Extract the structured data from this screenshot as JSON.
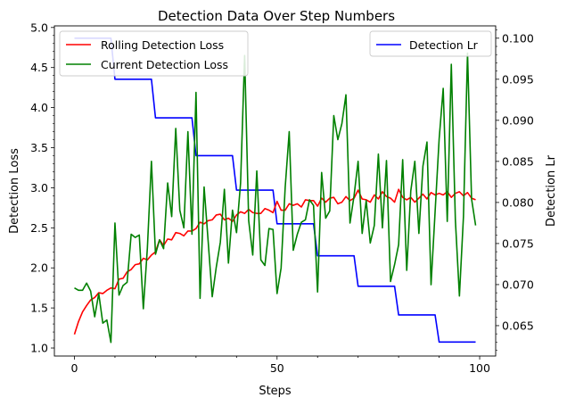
{
  "chart_data": {
    "type": "line",
    "title": "Detection Data Over Step Numbers",
    "xlabel": "Steps",
    "ylabel_left": "Detection Loss",
    "ylabel_right": "Detection Lr",
    "xlim": [
      -4.95,
      103.95
    ],
    "ylim_left": [
      0.9,
      5.02
    ],
    "ylim_right": [
      0.0613,
      0.1015
    ],
    "x_ticks": [
      0,
      50,
      100
    ],
    "y_ticks_left": [
      "1.0",
      "1.5",
      "2.0",
      "2.5",
      "3.0",
      "3.5",
      "4.0",
      "4.5",
      "5.0"
    ],
    "y_ticks_right": [
      "0.065",
      "0.070",
      "0.075",
      "0.080",
      "0.085",
      "0.090",
      "0.095",
      "0.100"
    ],
    "grid": false,
    "legend_left_position": "upper-left",
    "legend_right_position": "upper-right",
    "series_left": [
      {
        "name": "Rolling Detection Loss",
        "color": "#ff0000",
        "values": [
          1.17,
          1.33,
          1.45,
          1.53,
          1.6,
          1.63,
          1.69,
          1.68,
          1.72,
          1.75,
          1.74,
          1.86,
          1.87,
          1.95,
          1.98,
          2.04,
          2.05,
          2.12,
          2.1,
          2.16,
          2.2,
          2.35,
          2.28,
          2.36,
          2.35,
          2.44,
          2.43,
          2.4,
          2.46,
          2.46,
          2.49,
          2.57,
          2.55,
          2.59,
          2.6,
          2.66,
          2.67,
          2.6,
          2.62,
          2.58,
          2.66,
          2.7,
          2.68,
          2.73,
          2.69,
          2.68,
          2.68,
          2.74,
          2.72,
          2.69,
          2.83,
          2.72,
          2.72,
          2.8,
          2.78,
          2.8,
          2.76,
          2.85,
          2.84,
          2.84,
          2.77,
          2.87,
          2.82,
          2.87,
          2.88,
          2.8,
          2.82,
          2.89,
          2.84,
          2.87,
          2.97,
          2.86,
          2.85,
          2.82,
          2.91,
          2.86,
          2.95,
          2.89,
          2.87,
          2.82,
          2.98,
          2.88,
          2.85,
          2.88,
          2.82,
          2.87,
          2.92,
          2.86,
          2.94,
          2.91,
          2.93,
          2.91,
          2.95,
          2.88,
          2.93,
          2.95,
          2.9,
          2.94,
          2.87,
          2.85
        ]
      },
      {
        "name": "Current Detection Loss",
        "color": "#008000",
        "values": [
          1.75,
          1.72,
          1.72,
          1.81,
          1.71,
          1.39,
          1.68,
          1.31,
          1.35,
          1.07,
          2.56,
          1.66,
          1.78,
          1.82,
          2.42,
          2.38,
          2.41,
          1.49,
          2.25,
          3.33,
          2.17,
          2.35,
          2.24,
          3.06,
          2.64,
          3.74,
          2.72,
          2.5,
          3.7,
          2.42,
          4.19,
          1.62,
          3.01,
          2.33,
          1.64,
          2.01,
          2.32,
          2.98,
          2.06,
          2.72,
          2.44,
          3.06,
          4.65,
          2.59,
          2.16,
          3.21,
          2.1,
          2.03,
          2.49,
          2.48,
          1.68,
          2.0,
          3.0,
          3.7,
          2.22,
          2.42,
          2.57,
          2.6,
          2.85,
          2.78,
          1.7,
          3.19,
          2.62,
          2.71,
          3.9,
          3.6,
          3.8,
          4.16,
          2.56,
          2.9,
          3.33,
          2.43,
          2.84,
          2.31,
          2.53,
          3.42,
          2.5,
          3.34,
          1.83,
          2.04,
          2.29,
          3.35,
          1.97,
          2.96,
          3.33,
          2.43,
          3.27,
          3.57,
          1.79,
          2.7,
          3.61,
          4.24,
          2.58,
          4.54,
          2.6,
          1.65,
          2.64,
          4.68,
          2.86,
          2.53
        ]
      }
    ],
    "series_right": [
      {
        "name": "Detection Lr",
        "color": "#0000ff",
        "values": [
          0.1,
          0.1,
          0.1,
          0.1,
          0.1,
          0.1,
          0.1,
          0.1,
          0.1,
          0.1,
          0.095,
          0.095,
          0.095,
          0.095,
          0.095,
          0.095,
          0.095,
          0.095,
          0.095,
          0.095,
          0.0903,
          0.0903,
          0.0903,
          0.0903,
          0.0903,
          0.0903,
          0.0903,
          0.0903,
          0.0903,
          0.0903,
          0.0857,
          0.0857,
          0.0857,
          0.0857,
          0.0857,
          0.0857,
          0.0857,
          0.0857,
          0.0857,
          0.0857,
          0.0815,
          0.0815,
          0.0815,
          0.0815,
          0.0815,
          0.0815,
          0.0815,
          0.0815,
          0.0815,
          0.0815,
          0.0774,
          0.0774,
          0.0774,
          0.0774,
          0.0774,
          0.0774,
          0.0774,
          0.0774,
          0.0774,
          0.0774,
          0.0735,
          0.0735,
          0.0735,
          0.0735,
          0.0735,
          0.0735,
          0.0735,
          0.0735,
          0.0735,
          0.0735,
          0.0698,
          0.0698,
          0.0698,
          0.0698,
          0.0698,
          0.0698,
          0.0698,
          0.0698,
          0.0698,
          0.0698,
          0.0663,
          0.0663,
          0.0663,
          0.0663,
          0.0663,
          0.0663,
          0.0663,
          0.0663,
          0.0663,
          0.0663,
          0.063,
          0.063,
          0.063,
          0.063,
          0.063,
          0.063,
          0.063,
          0.063,
          0.063,
          0.063
        ]
      }
    ]
  }
}
